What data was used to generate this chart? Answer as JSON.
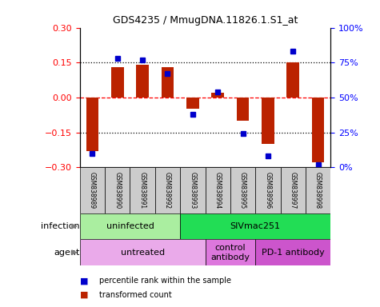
{
  "title": "GDS4235 / MmugDNA.11826.1.S1_at",
  "samples": [
    "GSM838989",
    "GSM838990",
    "GSM838991",
    "GSM838992",
    "GSM838993",
    "GSM838994",
    "GSM838995",
    "GSM838996",
    "GSM838997",
    "GSM838998"
  ],
  "red_bars": [
    -0.23,
    0.13,
    0.14,
    0.13,
    -0.05,
    0.02,
    -0.1,
    -0.2,
    0.15,
    -0.28
  ],
  "blue_squares_pct": [
    10,
    78,
    77,
    67,
    38,
    54,
    24,
    8,
    83,
    2
  ],
  "ylim": [
    -0.3,
    0.3
  ],
  "yticks_left": [
    -0.3,
    -0.15,
    0,
    0.15,
    0.3
  ],
  "yticks_right": [
    0,
    25,
    50,
    75,
    100
  ],
  "ytick_labels_right": [
    "0%",
    "25%",
    "50%",
    "75%",
    "100%"
  ],
  "dotted_lines": [
    -0.15,
    0.15
  ],
  "bar_color": "#BB2200",
  "square_color": "#0000CC",
  "infection_groups": [
    {
      "label": "uninfected",
      "start": 0,
      "end": 4,
      "color": "#AAEEA0"
    },
    {
      "label": "SIVmac251",
      "start": 4,
      "end": 10,
      "color": "#22DD55"
    }
  ],
  "agent_groups": [
    {
      "label": "untreated",
      "start": 0,
      "end": 5,
      "color": "#EAAAEA"
    },
    {
      "label": "control\nantibody",
      "start": 5,
      "end": 7,
      "color": "#DD77DD"
    },
    {
      "label": "PD-1 antibody",
      "start": 7,
      "end": 10,
      "color": "#CC55CC"
    }
  ],
  "legend_items": [
    {
      "label": "transformed count",
      "color": "#BB2200"
    },
    {
      "label": "percentile rank within the sample",
      "color": "#0000CC"
    }
  ],
  "infection_label": "infection",
  "agent_label": "agent"
}
